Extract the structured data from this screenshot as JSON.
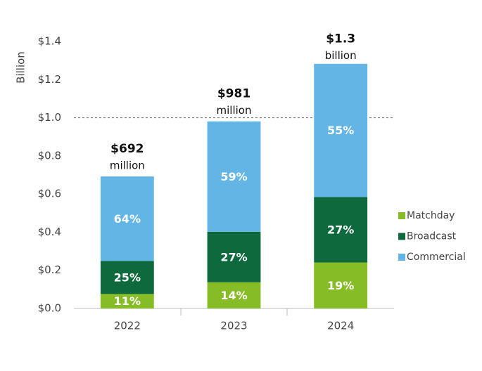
{
  "chart_data": {
    "type": "stacked_bar_percent",
    "y_label": "Billion",
    "categories": [
      "2022",
      "2023",
      "2024"
    ],
    "totals": [
      {
        "value": 0.692,
        "label": "$692",
        "unit": "million"
      },
      {
        "value": 0.981,
        "label": "$981",
        "unit": "million"
      },
      {
        "value": 1.27,
        "label": "$1.3",
        "unit": "billion"
      }
    ],
    "series": [
      {
        "name": "Matchday",
        "color": "#86bc25",
        "values": [
          11,
          14,
          19
        ],
        "value_labels": [
          "11%",
          "14%",
          "19%"
        ]
      },
      {
        "name": "Broadcast",
        "color": "#0e6a3c",
        "values": [
          25,
          27,
          27
        ],
        "value_labels": [
          "25%",
          "27%",
          "27%"
        ]
      },
      {
        "name": "Commercial",
        "color": "#62b5e5",
        "values": [
          64,
          59,
          55
        ],
        "value_labels": [
          "64%",
          "59%",
          "55%"
        ]
      }
    ],
    "ylim": [
      0,
      1.4
    ],
    "yticks": [
      {
        "value": 0,
        "label": "$0.0"
      },
      {
        "value": 0.2,
        "label": "$0.2"
      },
      {
        "value": 0.4,
        "label": "$0.4"
      },
      {
        "value": 0.6,
        "label": "$0.6"
      },
      {
        "value": 0.8,
        "label": "$0.8"
      },
      {
        "value": 1.0,
        "label": "$1.0"
      },
      {
        "value": 1.2,
        "label": "$1.2"
      },
      {
        "value": 1.4,
        "label": "$1.4"
      }
    ],
    "reference_line": 1.0,
    "legend": "right"
  }
}
